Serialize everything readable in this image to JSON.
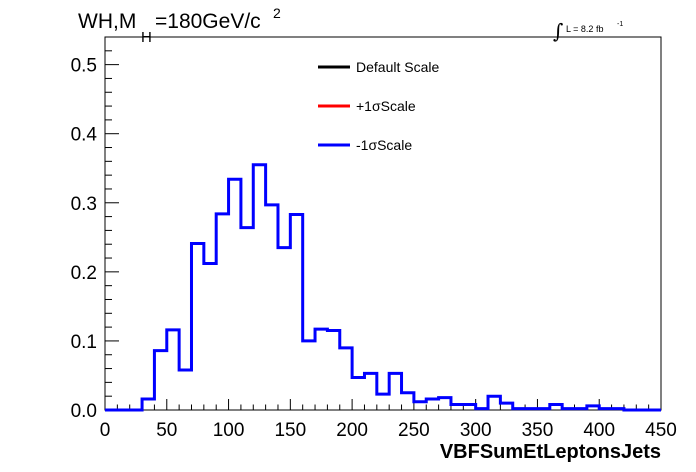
{
  "chart_data": {
    "type": "line",
    "title": {
      "main": "WH,M",
      "subscript": "H",
      "mass": "=180GeV/c",
      "superscript": "2"
    },
    "luminosity": {
      "integral": "∫",
      "text": "L = 8.2 fb",
      "superscript": "-1"
    },
    "xlabel": "VBFSumEtLeptonsJets",
    "ylabel": "",
    "xlim": [
      0,
      450
    ],
    "ylim": [
      0,
      0.54
    ],
    "xticks": [
      0,
      50,
      100,
      150,
      200,
      250,
      300,
      350,
      400,
      450
    ],
    "xtick_labels": [
      "0",
      "50",
      "100",
      "150",
      "200",
      "250",
      "300",
      "350",
      "400",
      "450"
    ],
    "yticks": [
      0,
      0.1,
      0.2,
      0.3,
      0.4,
      0.5
    ],
    "ytick_labels": [
      "0.0",
      "0.1",
      "0.2",
      "0.3",
      "0.4",
      "0.5"
    ],
    "bin_width": 10,
    "bin_edges_start": 0,
    "legend": {
      "placement": "top-center",
      "entries": [
        {
          "name": "Default Scale",
          "color": "#000000"
        },
        {
          "name": "+1σScale",
          "color": "#ff0000"
        },
        {
          "name": "-1σScale",
          "color": "#0000ff"
        }
      ]
    },
    "series": [
      {
        "name": "-1σScale",
        "color": "#0000ff",
        "style": "histogram-step",
        "values": [
          0,
          0,
          0,
          0.016,
          0.086,
          0.116,
          0.058,
          0.241,
          0.212,
          0.284,
          0.334,
          0.264,
          0.355,
          0.297,
          0.235,
          0.283,
          0.1,
          0.117,
          0.115,
          0.09,
          0.047,
          0.053,
          0.023,
          0.053,
          0.025,
          0.012,
          0.016,
          0.018,
          0.008,
          0.008,
          0.002,
          0.02,
          0.01,
          0.002,
          0.002,
          0.002,
          0.008,
          0.002,
          0.002,
          0.006,
          0.002,
          0.002,
          0,
          0,
          0
        ]
      }
    ],
    "grid": false
  },
  "colors": {
    "frame": "#000000",
    "background": "#ffffff"
  }
}
